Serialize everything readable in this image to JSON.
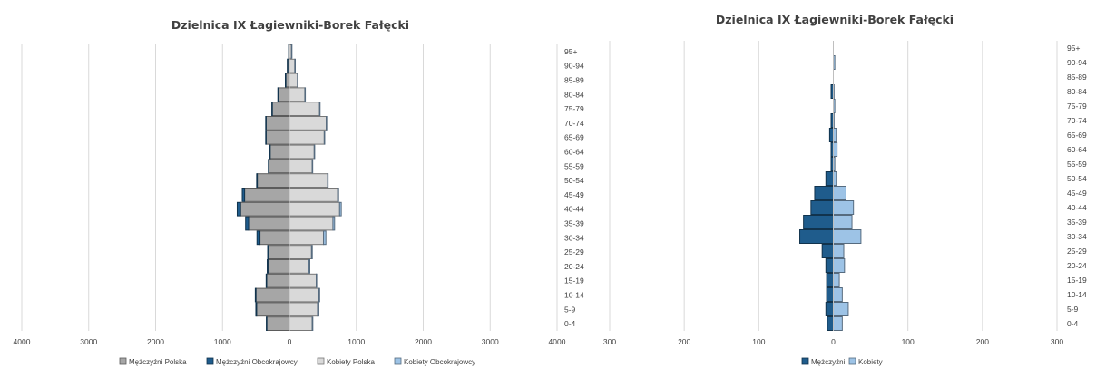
{
  "chart_data": [
    {
      "type": "bar",
      "orientation": "horizontal-pyramid",
      "title": "Dzielnica IX Łagiewniki-Borek Fałęcki",
      "categories": [
        "0-4",
        "5-9",
        "10-14",
        "15-19",
        "20-24",
        "25-29",
        "30-34",
        "35-39",
        "40-44",
        "45-49",
        "50-54",
        "55-59",
        "60-64",
        "65-69",
        "70-74",
        "75-79",
        "80-84",
        "85-89",
        "90-94",
        "95+"
      ],
      "xlim": [
        -4000,
        4000
      ],
      "x_ticks": [
        "4000",
        "3000",
        "2000",
        "1000",
        "0",
        "1000",
        "2000",
        "3000",
        "4000"
      ],
      "grid": true,
      "legend_position": "bottom",
      "series": [
        {
          "name": "Mężczyźni Polska",
          "side": "left",
          "color": "#a6a6a6",
          "values": [
            340,
            490,
            500,
            340,
            320,
            310,
            440,
            610,
            730,
            670,
            480,
            310,
            290,
            350,
            350,
            260,
            170,
            60,
            30,
            10
          ]
        },
        {
          "name": "Mężczyźni Obcokrajowcy",
          "side": "left",
          "color": "#1f5c8c",
          "values": [
            5,
            12,
            10,
            8,
            12,
            15,
            45,
            45,
            50,
            35,
            10,
            5,
            5,
            5,
            5,
            3,
            3,
            1,
            1,
            1
          ]
        },
        {
          "name": "Kobiety Polska",
          "side": "right",
          "color": "#d9d9d9",
          "values": [
            340,
            420,
            440,
            400,
            290,
            330,
            510,
            650,
            750,
            720,
            570,
            340,
            370,
            520,
            550,
            450,
            230,
            120,
            80,
            30
          ]
        },
        {
          "name": "Kobiety Obcokrajowcy",
          "side": "right",
          "color": "#9dc3e6",
          "values": [
            10,
            20,
            12,
            8,
            15,
            12,
            35,
            25,
            25,
            15,
            5,
            2,
            5,
            3,
            2,
            2,
            2,
            1,
            1,
            1
          ]
        }
      ]
    },
    {
      "type": "bar",
      "orientation": "horizontal-pyramid",
      "title": "Dzielnica IX Łagiewniki-Borek Fałęcki",
      "categories": [
        "0-4",
        "5-9",
        "10-14",
        "15-19",
        "20-24",
        "25-29",
        "30-34",
        "35-39",
        "40-44",
        "45-49",
        "50-54",
        "55-59",
        "60-64",
        "65-69",
        "70-74",
        "75-79",
        "80-84",
        "85-89",
        "90-94",
        "95+"
      ],
      "xlim": [
        -300,
        300
      ],
      "x_ticks": [
        "300",
        "200",
        "100",
        "0",
        "100",
        "200",
        "300"
      ],
      "grid": true,
      "legend_position": "bottom",
      "series": [
        {
          "name": "Mężczyźni",
          "side": "left",
          "color": "#1f5c8c",
          "values": [
            8,
            10,
            9,
            9,
            10,
            15,
            45,
            40,
            30,
            25,
            10,
            3,
            3,
            5,
            3,
            0,
            3,
            0,
            0,
            0
          ]
        },
        {
          "name": "Kobiety",
          "side": "right",
          "color": "#9dc3e6",
          "values": [
            12,
            20,
            12,
            8,
            15,
            14,
            37,
            25,
            27,
            17,
            4,
            2,
            5,
            4,
            1,
            2,
            1,
            0,
            2,
            0
          ]
        }
      ]
    }
  ]
}
